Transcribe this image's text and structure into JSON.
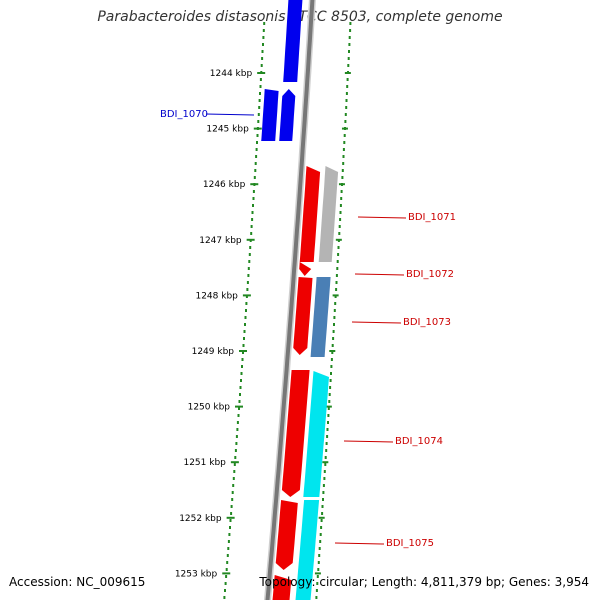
{
  "title": "Parabacteroides distasonis ATCC 8503, complete genome",
  "footer": {
    "accession": "Accession: NC_009615",
    "summary": "Topology: circular; Length: 4,811,379 bp; Genes: 3,954"
  },
  "colors": {
    "backbone": "#777777",
    "dotted_track": "#228822",
    "reverse_gene": "#0000ee",
    "forward_gene": "#ee0000",
    "gray_feature": "#b4b4b4",
    "steel_feature": "#4a7fb5",
    "cyan_feature": "#00e5ee",
    "left_label": "#0000cc",
    "right_label": "#cc0000"
  },
  "scale_ticks": [
    "1244 kbp",
    "1245 kbp",
    "1246 kbp",
    "1247 kbp",
    "1248 kbp",
    "1249 kbp",
    "1250 kbp",
    "1251 kbp",
    "1252 kbp",
    "1253 kbp"
  ],
  "genes": [
    {
      "label": "BDI_1070",
      "side": "left"
    },
    {
      "label": "BDI_1071",
      "side": "right"
    },
    {
      "label": "BDI_1072",
      "side": "right"
    },
    {
      "label": "BDI_1073",
      "side": "right"
    },
    {
      "label": "BDI_1074",
      "side": "right"
    },
    {
      "label": "BDI_1075",
      "side": "right"
    }
  ]
}
